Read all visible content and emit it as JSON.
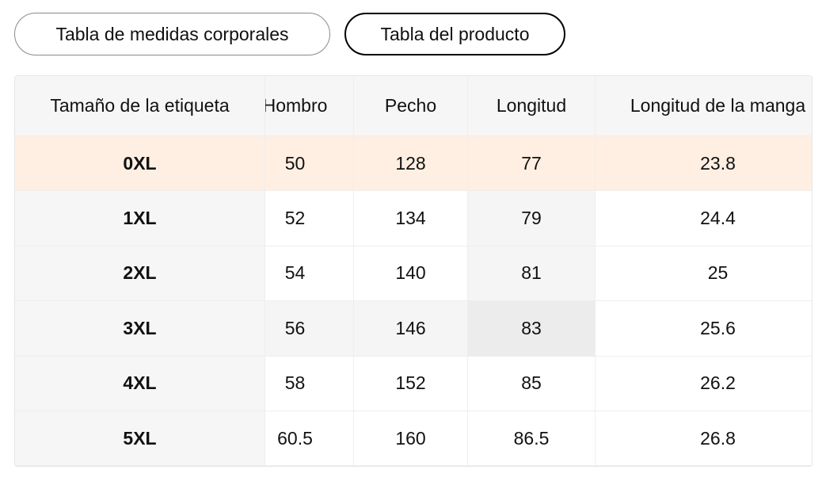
{
  "tabs": [
    "Tabla de medidas corporales",
    "Tabla del producto"
  ],
  "table": {
    "header": [
      "Tamaño de la etiqueta",
      "Hombro",
      "Pecho",
      "Longitud",
      "Longitud de la manga"
    ],
    "rows": [
      [
        "0XL",
        "50",
        "128",
        "77",
        "23.8"
      ],
      [
        "1XL",
        "52",
        "134",
        "79",
        "24.4"
      ],
      [
        "2XL",
        "54",
        "140",
        "81",
        "25"
      ],
      [
        "3XL",
        "56",
        "146",
        "83",
        "25.6"
      ],
      [
        "4XL",
        "58",
        "152",
        "85",
        "26.2"
      ],
      [
        "5XL",
        "60.5",
        "160",
        "86.5",
        "26.8"
      ]
    ]
  }
}
